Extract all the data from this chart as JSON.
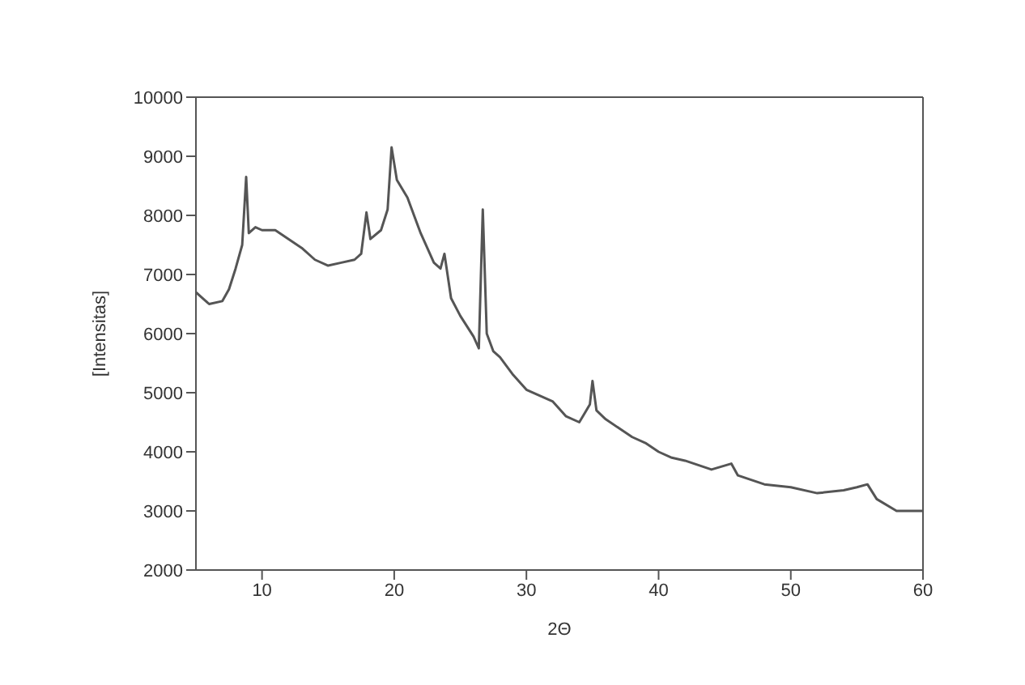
{
  "chart_data": {
    "type": "line",
    "xlabel": "2Θ",
    "ylabel": "[Intensitas]",
    "xlim": [
      5,
      60
    ],
    "xticks": [
      10,
      20,
      30,
      40,
      50,
      60
    ],
    "ylim": [
      2000,
      10000
    ],
    "yticks": [
      2000,
      3000,
      4000,
      5000,
      6000,
      7000,
      8000,
      9000,
      10000
    ],
    "marker": "none",
    "line_style": "solid",
    "x": [
      5,
      6,
      7,
      7.5,
      8,
      8.5,
      8.8,
      9,
      9.5,
      10,
      11,
      12,
      13,
      14,
      15,
      16,
      17,
      17.5,
      17.9,
      18.2,
      19,
      19.5,
      19.8,
      20.2,
      21,
      22,
      23,
      23.5,
      23.8,
      24.3,
      25,
      26,
      26.4,
      26.7,
      27,
      27.5,
      28,
      29,
      30,
      31,
      32,
      33,
      34,
      34.8,
      35,
      35.3,
      36,
      37,
      38,
      39,
      40,
      41,
      42,
      44,
      45.5,
      46,
      48,
      50,
      52,
      54,
      55,
      55.8,
      56.5,
      58,
      60
    ],
    "series": [
      {
        "color": "#555555",
        "values": [
          6700,
          6500,
          6550,
          6750,
          7100,
          7500,
          8650,
          7700,
          7800,
          7750,
          7750,
          7600,
          7450,
          7250,
          7150,
          7200,
          7250,
          7350,
          8050,
          7600,
          7750,
          8100,
          9150,
          8600,
          8300,
          7700,
          7200,
          7100,
          7350,
          6600,
          6300,
          5950,
          5750,
          8100,
          6000,
          5700,
          5600,
          5300,
          5050,
          4950,
          4850,
          4600,
          4500,
          4800,
          5200,
          4700,
          4550,
          4400,
          4250,
          4150,
          4000,
          3900,
          3850,
          3700,
          3800,
          3600,
          3450,
          3400,
          3300,
          3350,
          3400,
          3450,
          3200,
          3000,
          3000
        ]
      }
    ]
  }
}
